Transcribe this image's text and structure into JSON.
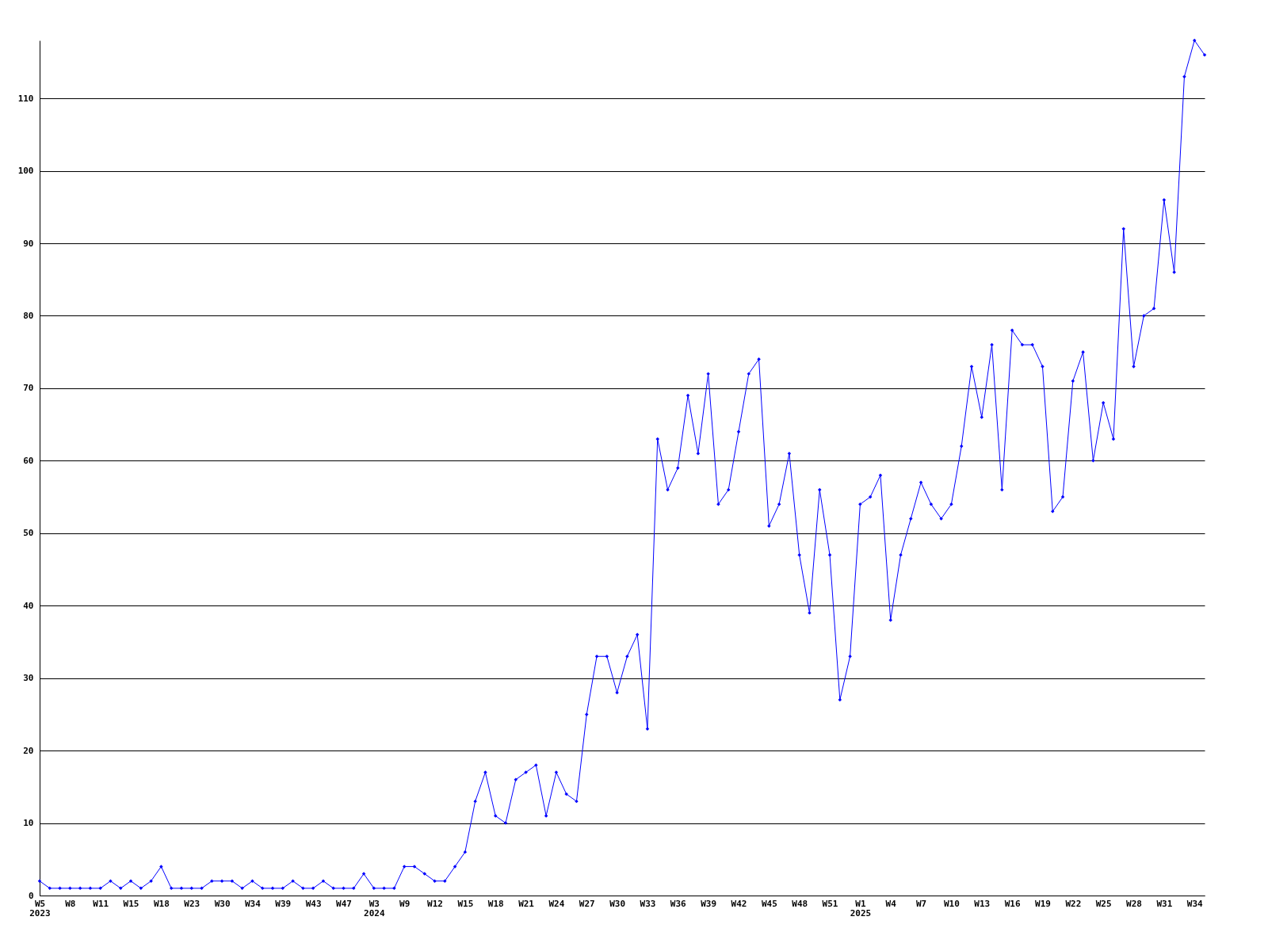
{
  "chart_data": {
    "type": "line",
    "categories": [
      "W5\n2023",
      null,
      null,
      "W8",
      null,
      null,
      "W11",
      null,
      null,
      "W15",
      null,
      null,
      "W18",
      null,
      null,
      "W23",
      null,
      null,
      "W30",
      null,
      null,
      "W34",
      null,
      null,
      "W39",
      null,
      null,
      "W43",
      null,
      null,
      "W47",
      null,
      null,
      "W3\n2024",
      null,
      null,
      "W9",
      null,
      null,
      "W12",
      null,
      null,
      "W15",
      null,
      null,
      "W18",
      null,
      null,
      "W21",
      null,
      null,
      "W24",
      null,
      null,
      "W27",
      null,
      null,
      "W30",
      null,
      null,
      "W33",
      null,
      null,
      "W36",
      null,
      null,
      "W39",
      null,
      null,
      "W42",
      null,
      null,
      "W45",
      null,
      null,
      "W48",
      null,
      null,
      "W51",
      null,
      null,
      "W1\n2025",
      null,
      null,
      "W4",
      null,
      null,
      "W7",
      null,
      null,
      "W10",
      null,
      null,
      "W13",
      null,
      null,
      "W16",
      null,
      null,
      "W19",
      null,
      null,
      "W22",
      null,
      null,
      "W25",
      null,
      null,
      "W28",
      null,
      null,
      "W31",
      null,
      null,
      "W34",
      null
    ],
    "series": [
      {
        "color": "#0000ff",
        "values": [
          2,
          1,
          1,
          1,
          1,
          1,
          1,
          2,
          1,
          2,
          1,
          2,
          4,
          1,
          1,
          1,
          1,
          2,
          2,
          2,
          1,
          2,
          1,
          1,
          1,
          2,
          1,
          1,
          2,
          1,
          1,
          1,
          3,
          1,
          1,
          1,
          4,
          4,
          3,
          2,
          2,
          4,
          6,
          13,
          17,
          11,
          10,
          16,
          17,
          18,
          11,
          17,
          14,
          13,
          25,
          33,
          33,
          28,
          33,
          36,
          23,
          63,
          56,
          59,
          69,
          61,
          72,
          54,
          56,
          64,
          72,
          74,
          51,
          54,
          61,
          47,
          39,
          56,
          47,
          27,
          33,
          54,
          55,
          58,
          38,
          47,
          52,
          57,
          54,
          52,
          54,
          62,
          73,
          66,
          76,
          56,
          78,
          76,
          76,
          73,
          53,
          55,
          71,
          75,
          60,
          68,
          63,
          92,
          73,
          80,
          81,
          96,
          86,
          113,
          118,
          116
        ]
      }
    ],
    "ylim": [
      0,
      118
    ],
    "yticks": [
      0,
      10,
      20,
      30,
      40,
      50,
      60,
      70,
      80,
      90,
      100,
      110
    ],
    "grid": "y",
    "marker": "diamond",
    "line_style": "solid"
  }
}
